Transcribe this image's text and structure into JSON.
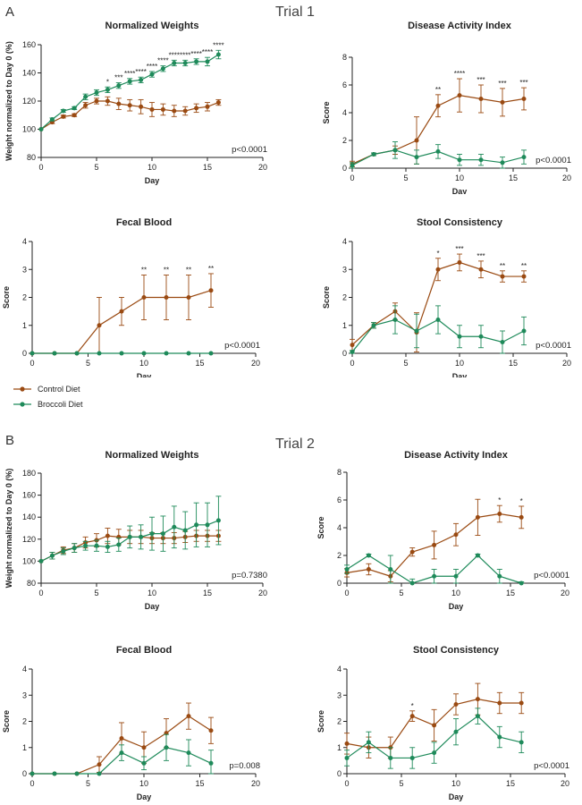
{
  "panel_labels": {
    "a": "A",
    "b": "B"
  },
  "trial_titles": {
    "t1": "Trial 1",
    "t2": "Trial 2"
  },
  "legend": {
    "control": "Control Diet",
    "broccoli": "Broccoli Diet"
  },
  "colors": {
    "control": "#9a4a12",
    "broccoli": "#1e8a5a",
    "axis": "#222222"
  },
  "chart_data": [
    {
      "type": "line",
      "id": "t1-weights",
      "title": "Normalized Weights",
      "xlabel": "Day",
      "ylabel": "Weight normalized to Day 0 (%)",
      "xlim": [
        0,
        20
      ],
      "ylim": [
        80,
        160
      ],
      "xticks": [
        "0",
        "5",
        "10",
        "15",
        "20"
      ],
      "yticks": [
        "80",
        "100",
        "120",
        "140",
        "160"
      ],
      "x": [
        0,
        1,
        2,
        3,
        4,
        5,
        6,
        7,
        8,
        9,
        10,
        11,
        12,
        13,
        14,
        15,
        16
      ],
      "series": [
        {
          "name": "Control Diet",
          "values": [
            100,
            105,
            109,
            110,
            117,
            120,
            120,
            118,
            117,
            116,
            114,
            114,
            113,
            113,
            115,
            116,
            119
          ],
          "errors": [
            0,
            1,
            1,
            1,
            2,
            2,
            3,
            4,
            4,
            5,
            5,
            4,
            4,
            3,
            3,
            3,
            2
          ]
        },
        {
          "name": "Broccoli Diet",
          "values": [
            100,
            107,
            113,
            115,
            123,
            126,
            128,
            131,
            134,
            135,
            139,
            143,
            147,
            147,
            148,
            148,
            153
          ],
          "errors": [
            0,
            1,
            1,
            1,
            2,
            2,
            2,
            2,
            2,
            2,
            2,
            2,
            2,
            2,
            2,
            3,
            3
          ]
        }
      ],
      "annotations": [
        {
          "x": 6,
          "text": "*"
        },
        {
          "x": 7,
          "text": "***"
        },
        {
          "x": 8,
          "text": "****"
        },
        {
          "x": 9,
          "text": "****"
        },
        {
          "x": 10,
          "text": "****"
        },
        {
          "x": 11,
          "text": "****"
        },
        {
          "x": 12,
          "text": "****"
        },
        {
          "x": 13,
          "text": "****"
        },
        {
          "x": 14,
          "text": "****"
        },
        {
          "x": 15,
          "text": "****"
        },
        {
          "x": 16,
          "text": "****"
        }
      ],
      "pvalue": "p<0.0001"
    },
    {
      "type": "line",
      "id": "t1-dai",
      "title": "Disease Activity Index",
      "xlabel": "Day",
      "ylabel": "Score",
      "xlim": [
        0,
        20
      ],
      "ylim": [
        0,
        8
      ],
      "xticks": [
        "0",
        "5",
        "10",
        "15",
        "20"
      ],
      "yticks": [
        "0",
        "2",
        "4",
        "6",
        "8"
      ],
      "x": [
        0,
        2,
        4,
        6,
        8,
        10,
        12,
        14,
        16
      ],
      "series": [
        {
          "name": "Control Diet",
          "values": [
            0.3,
            1.0,
            1.3,
            2.0,
            4.5,
            5.25,
            5.0,
            4.75,
            5.0
          ],
          "errors": [
            0.2,
            0.1,
            0.3,
            1.7,
            0.8,
            1.2,
            1.0,
            1.0,
            0.8
          ]
        },
        {
          "name": "Broccoli Diet",
          "values": [
            0.2,
            1.0,
            1.3,
            0.8,
            1.2,
            0.6,
            0.6,
            0.4,
            0.8
          ],
          "errors": [
            0.2,
            0.1,
            0.6,
            0.5,
            0.5,
            0.4,
            0.4,
            0.4,
            0.5
          ]
        }
      ],
      "annotations": [
        {
          "x": 8,
          "text": "**"
        },
        {
          "x": 10,
          "text": "****"
        },
        {
          "x": 12,
          "text": "***"
        },
        {
          "x": 14,
          "text": "***"
        },
        {
          "x": 16,
          "text": "***"
        }
      ],
      "pvalue": "p<0.0001"
    },
    {
      "type": "line",
      "id": "t1-fecal",
      "title": "Fecal Blood",
      "xlabel": "Day",
      "ylabel": "Score",
      "xlim": [
        0,
        20
      ],
      "ylim": [
        0,
        4
      ],
      "xticks": [
        "0",
        "5",
        "10",
        "15",
        "20"
      ],
      "yticks": [
        "0",
        "1",
        "2",
        "3",
        "4"
      ],
      "x": [
        0,
        2,
        4,
        6,
        8,
        10,
        12,
        14,
        16
      ],
      "series": [
        {
          "name": "Control Diet",
          "values": [
            0,
            0,
            0,
            1.0,
            1.5,
            2.0,
            2.0,
            2.0,
            2.25
          ],
          "errors": [
            0,
            0,
            0,
            1.0,
            0.5,
            0.8,
            0.8,
            0.8,
            0.6
          ]
        },
        {
          "name": "Broccoli Diet",
          "values": [
            0,
            0,
            0,
            0,
            0,
            0,
            0,
            0,
            0
          ],
          "errors": [
            0,
            0,
            0,
            0,
            0,
            0,
            0,
            0,
            0
          ]
        }
      ],
      "annotations": [
        {
          "x": 10,
          "text": "**"
        },
        {
          "x": 12,
          "text": "**"
        },
        {
          "x": 14,
          "text": "**"
        },
        {
          "x": 16,
          "text": "**"
        }
      ],
      "pvalue": "p<0.0001"
    },
    {
      "type": "line",
      "id": "t1-stool",
      "title": "Stool Consistency",
      "xlabel": "Day",
      "ylabel": "Score",
      "xlim": [
        0,
        20
      ],
      "ylim": [
        0,
        4
      ],
      "xticks": [
        "0",
        "5",
        "10",
        "15",
        "20"
      ],
      "yticks": [
        "0",
        "1",
        "2",
        "3",
        "4"
      ],
      "x": [
        0,
        2,
        4,
        6,
        8,
        10,
        12,
        14,
        16
      ],
      "series": [
        {
          "name": "Control Diet",
          "values": [
            0.3,
            1.0,
            1.5,
            0.75,
            3.0,
            3.25,
            3.0,
            2.75,
            2.75
          ],
          "errors": [
            0.2,
            0.1,
            0.3,
            0.7,
            0.4,
            0.3,
            0.3,
            0.2,
            0.2
          ]
        },
        {
          "name": "Broccoli Diet",
          "values": [
            0.05,
            1.0,
            1.2,
            0.8,
            1.2,
            0.6,
            0.6,
            0.4,
            0.8
          ],
          "errors": [
            0.05,
            0.1,
            0.5,
            0.6,
            0.5,
            0.4,
            0.4,
            0.4,
            0.5
          ]
        }
      ],
      "annotations": [
        {
          "x": 8,
          "text": "*"
        },
        {
          "x": 10,
          "text": "***"
        },
        {
          "x": 12,
          "text": "***"
        },
        {
          "x": 14,
          "text": "**"
        },
        {
          "x": 16,
          "text": "**"
        }
      ],
      "pvalue": "p<0.0001"
    },
    {
      "type": "line",
      "id": "t2-weights",
      "title": "Normalized Weights",
      "xlabel": "Day",
      "ylabel": "Weight normalized to Day 0 (%)",
      "xlim": [
        0,
        20
      ],
      "ylim": [
        80,
        180
      ],
      "xticks": [
        "0",
        "5",
        "10",
        "15",
        "20"
      ],
      "yticks": [
        "80",
        "100",
        "120",
        "140",
        "160",
        "180"
      ],
      "x": [
        0,
        1,
        2,
        3,
        4,
        5,
        6,
        7,
        8,
        9,
        10,
        11,
        12,
        13,
        14,
        15,
        16
      ],
      "series": [
        {
          "name": "Control Diet",
          "values": [
            100,
            105,
            110,
            112,
            117,
            119,
            123,
            122,
            122,
            122,
            121,
            121,
            121,
            122,
            123,
            123,
            123
          ],
          "errors": [
            0,
            3,
            3,
            4,
            5,
            6,
            7,
            7,
            6,
            6,
            5,
            5,
            5,
            5,
            5,
            5,
            5
          ]
        },
        {
          "name": "Broccoli Diet",
          "values": [
            100,
            105,
            109,
            112,
            114,
            114,
            113,
            115,
            122,
            122,
            125,
            125,
            131,
            128,
            133,
            133,
            137
          ],
          "errors": [
            0,
            3,
            3,
            4,
            4,
            5,
            5,
            6,
            10,
            11,
            15,
            16,
            19,
            17,
            20,
            20,
            22
          ]
        }
      ],
      "annotations": [],
      "pvalue": "p=0.7380"
    },
    {
      "type": "line",
      "id": "t2-dai",
      "title": "Disease Activity Index",
      "xlabel": "Day",
      "ylabel": "Score",
      "xlim": [
        0,
        20
      ],
      "ylim": [
        0,
        8
      ],
      "xticks": [
        "0",
        "5",
        "10",
        "15",
        "20"
      ],
      "yticks": [
        "0",
        "2",
        "4",
        "6",
        "8"
      ],
      "x": [
        0,
        2,
        4,
        6,
        8,
        10,
        12,
        14,
        16
      ],
      "series": [
        {
          "name": "Control Diet",
          "values": [
            0.75,
            1.0,
            0.5,
            2.25,
            2.75,
            3.5,
            4.75,
            5.0,
            4.75
          ],
          "errors": [
            0.3,
            0.4,
            0.4,
            0.3,
            1.0,
            0.8,
            1.3,
            0.6,
            0.8
          ]
        },
        {
          "name": "Broccoli Diet",
          "values": [
            1.0,
            2.0,
            1.0,
            0,
            0.5,
            0.5,
            2.0,
            0.5,
            0
          ],
          "errors": [
            0.3,
            0.1,
            1.0,
            0.3,
            0.5,
            0.5,
            0.1,
            0.5,
            0.1
          ]
        }
      ],
      "annotations": [
        {
          "x": 14,
          "text": "*"
        },
        {
          "x": 16,
          "text": "*"
        }
      ],
      "pvalue": "p<0.0001"
    },
    {
      "type": "line",
      "id": "t2-fecal",
      "title": "Fecal Blood",
      "xlabel": "Day",
      "ylabel": "Score",
      "xlim": [
        0,
        20
      ],
      "ylim": [
        0,
        4
      ],
      "xticks": [
        "0",
        "5",
        "10",
        "15",
        "20"
      ],
      "yticks": [
        "0",
        "1",
        "2",
        "3",
        "4"
      ],
      "x": [
        0,
        2,
        4,
        6,
        8,
        10,
        12,
        14,
        16
      ],
      "series": [
        {
          "name": "Control Diet",
          "values": [
            0,
            0,
            0,
            0.35,
            1.35,
            1.0,
            1.55,
            2.2,
            1.65
          ],
          "errors": [
            0,
            0,
            0,
            0.3,
            0.6,
            0.6,
            0.55,
            0.5,
            0.5
          ]
        },
        {
          "name": "Broccoli Diet",
          "values": [
            0,
            0,
            0,
            0,
            0.8,
            0.4,
            1.0,
            0.8,
            0.4
          ],
          "errors": [
            0,
            0,
            0,
            0,
            0.3,
            0.25,
            0.5,
            0.5,
            0.5
          ]
        }
      ],
      "annotations": [],
      "pvalue": "p=0.008"
    },
    {
      "type": "line",
      "id": "t2-stool",
      "title": "Stool Consistency",
      "xlabel": "Day",
      "ylabel": "Score",
      "xlim": [
        0,
        20
      ],
      "ylim": [
        0,
        4
      ],
      "xticks": [
        "0",
        "5",
        "10",
        "15",
        "20"
      ],
      "yticks": [
        "0",
        "1",
        "2",
        "3",
        "4"
      ],
      "x": [
        0,
        2,
        4,
        6,
        8,
        10,
        12,
        14,
        16
      ],
      "series": [
        {
          "name": "Control Diet",
          "values": [
            1.15,
            1.0,
            1.0,
            2.2,
            1.85,
            2.65,
            2.85,
            2.7,
            2.7
          ],
          "errors": [
            0.4,
            0.4,
            0.4,
            0.2,
            0.6,
            0.4,
            0.6,
            0.4,
            0.4
          ]
        },
        {
          "name": "Broccoli Diet",
          "values": [
            0.6,
            1.2,
            0.6,
            0.6,
            0.8,
            1.6,
            2.2,
            1.4,
            1.2
          ],
          "errors": [
            0.3,
            0.4,
            0.4,
            0.4,
            0.4,
            0.5,
            0.3,
            0.4,
            0.4
          ]
        }
      ],
      "annotations": [
        {
          "x": 6,
          "text": "*"
        }
      ],
      "pvalue": "p<0.0001"
    }
  ]
}
